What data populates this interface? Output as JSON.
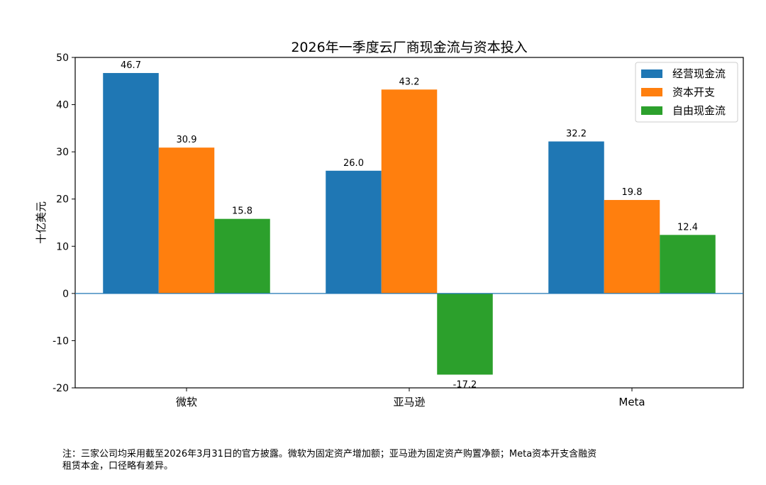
{
  "chart_data": {
    "type": "bar",
    "title": "2026年一季度云厂商现金流与资本投入",
    "xlabel": "",
    "ylabel": "十亿美元",
    "categories": [
      "微软",
      "亚马逊",
      "Meta"
    ],
    "series": [
      {
        "name": "经营现金流",
        "color": "#1f77b4",
        "values": [
          46.7,
          26.0,
          32.2
        ]
      },
      {
        "name": "资本开支",
        "color": "#ff7f0e",
        "values": [
          30.9,
          43.2,
          19.8
        ]
      },
      {
        "name": "自由现金流",
        "color": "#2ca02c",
        "values": [
          15.8,
          -17.2,
          12.4
        ]
      }
    ],
    "ylim": [
      -20,
      50
    ],
    "yticks": [
      -20,
      -10,
      0,
      10,
      20,
      30,
      40,
      50
    ],
    "legend_position": "top-right",
    "grid": false,
    "zero_line": true
  },
  "footnote": {
    "line1": "注：三家公司均采用截至2026年3月31日的官方披露。微软为固定资产增加额；亚马逊为固定资产购置净额；Meta资本开支含融资",
    "line2": "租赁本金，口径略有差异。"
  }
}
